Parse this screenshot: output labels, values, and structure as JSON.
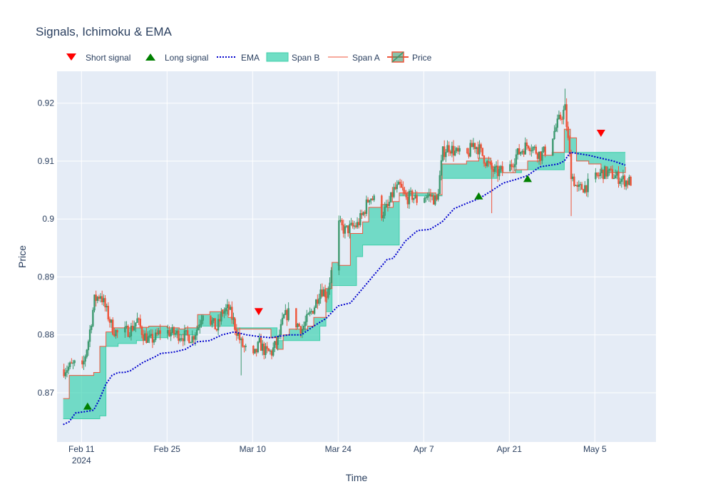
{
  "colors": {
    "plot_bg": "#e5ecf6",
    "grid": "#ffffff",
    "cloud_fill": "#40d3b2",
    "span_a": "#ef553b",
    "span_b": "#3fcfa9",
    "ema": "#0000cd",
    "up": "#3d9970",
    "down": "#ef553b",
    "short_signal": "#ff0000",
    "long_signal": "#008000"
  },
  "chart_data": {
    "type": "candlestick",
    "title": "Signals, Ichimoku & EMA",
    "xlabel": "Time",
    "ylabel": "Price",
    "x_range": [
      "2024-02-07",
      "2024-05-15"
    ],
    "ylim": [
      0.8615,
      0.9255
    ],
    "y_ticks": [
      0.87,
      0.88,
      0.89,
      0.9,
      0.91,
      0.92
    ],
    "y_tick_labels": [
      "0.87",
      "0.88",
      "0.89",
      "0.9",
      "0.91",
      "0.92"
    ],
    "x_ticks": [
      "2024-02-11",
      "2024-02-25",
      "2024-03-10",
      "2024-03-24",
      "2024-04-07",
      "2024-04-21",
      "2024-05-05"
    ],
    "x_tick_labels": [
      "Feb 11",
      "Feb 25",
      "Mar 10",
      "Mar 24",
      "Apr 7",
      "Apr 21",
      "May 5"
    ],
    "x_tick_sublabel": "2024",
    "grid": true,
    "legend": {
      "placement": "top-left horizontal",
      "entries": [
        "Short signal",
        "Long signal",
        "EMA",
        "Span B",
        "Span A",
        "Price"
      ]
    },
    "price_anchors": [
      [
        "2024-02-08",
        0.874
      ],
      [
        "2024-02-09",
        0.8745
      ],
      [
        "2024-02-10",
        0.875
      ],
      [
        "2024-02-11",
        0.874
      ],
      [
        "2024-02-12",
        0.879
      ],
      [
        "2024-02-13",
        0.886
      ],
      [
        "2024-02-14",
        0.887
      ],
      [
        "2024-02-15",
        0.884
      ],
      [
        "2024-02-16",
        0.881
      ],
      [
        "2024-02-17",
        0.88
      ],
      [
        "2024-02-19",
        0.881
      ],
      [
        "2024-02-20",
        0.8825
      ],
      [
        "2024-02-21",
        0.88
      ],
      [
        "2024-02-22",
        0.879
      ],
      [
        "2024-02-23",
        0.8795
      ],
      [
        "2024-02-24",
        0.881
      ],
      [
        "2024-02-25",
        0.8805
      ],
      [
        "2024-02-27",
        0.88
      ],
      [
        "2024-02-29",
        0.8795
      ],
      [
        "2024-03-01",
        0.8815
      ],
      [
        "2024-03-02",
        0.885
      ],
      [
        "2024-03-03",
        0.8825
      ],
      [
        "2024-03-04",
        0.881
      ],
      [
        "2024-03-05",
        0.884
      ],
      [
        "2024-03-06",
        0.8845
      ],
      [
        "2024-03-07",
        0.8815
      ],
      [
        "2024-03-08",
        0.8785
      ],
      [
        "2024-03-09",
        0.877
      ],
      [
        "2024-03-10",
        0.876
      ],
      [
        "2024-03-11",
        0.8785
      ],
      [
        "2024-03-12",
        0.877
      ],
      [
        "2024-03-13",
        0.877
      ],
      [
        "2024-03-14",
        0.879
      ],
      [
        "2024-03-15",
        0.883
      ],
      [
        "2024-03-16",
        0.884
      ],
      [
        "2024-03-17",
        0.882
      ],
      [
        "2024-03-18",
        0.881
      ],
      [
        "2024-03-19",
        0.883
      ],
      [
        "2024-03-20",
        0.885
      ],
      [
        "2024-03-21",
        0.888
      ],
      [
        "2024-03-22",
        0.887
      ],
      [
        "2024-03-23",
        0.892
      ],
      [
        "2024-03-24",
        0.899
      ],
      [
        "2024-03-25",
        0.898
      ],
      [
        "2024-03-27",
        0.899
      ],
      [
        "2024-03-28",
        0.901
      ],
      [
        "2024-03-29",
        0.904
      ],
      [
        "2024-03-30",
        0.903
      ],
      [
        "2024-03-31",
        0.901
      ],
      [
        "2024-04-01",
        0.902
      ],
      [
        "2024-04-02",
        0.905
      ],
      [
        "2024-04-03",
        0.9055
      ],
      [
        "2024-04-04",
        0.9035
      ],
      [
        "2024-04-05",
        0.904
      ],
      [
        "2024-04-06",
        0.903
      ],
      [
        "2024-04-07",
        0.904
      ],
      [
        "2024-04-08",
        0.904
      ],
      [
        "2024-04-09",
        0.903
      ],
      [
        "2024-04-10",
        0.9115
      ],
      [
        "2024-04-11",
        0.9125
      ],
      [
        "2024-04-12",
        0.9115
      ],
      [
        "2024-04-13",
        0.911
      ],
      [
        "2024-04-14",
        0.911
      ],
      [
        "2024-04-15",
        0.913
      ],
      [
        "2024-04-16",
        0.912
      ],
      [
        "2024-04-17",
        0.91
      ],
      [
        "2024-04-18",
        0.9085
      ],
      [
        "2024-04-19",
        0.908
      ],
      [
        "2024-04-20",
        0.9085
      ],
      [
        "2024-04-21",
        0.909
      ],
      [
        "2024-04-22",
        0.911
      ],
      [
        "2024-04-23",
        0.912
      ],
      [
        "2024-04-24",
        0.913
      ],
      [
        "2024-04-25",
        0.912
      ],
      [
        "2024-04-26",
        0.911
      ],
      [
        "2024-04-27",
        0.912
      ],
      [
        "2024-04-29",
        0.917
      ],
      [
        "2024-04-30",
        0.919
      ],
      [
        "2024-05-01",
        0.908
      ],
      [
        "2024-05-02",
        0.905
      ],
      [
        "2024-05-04",
        0.906
      ],
      [
        "2024-05-05",
        0.907
      ],
      [
        "2024-05-06",
        0.908
      ],
      [
        "2024-05-07",
        0.908
      ],
      [
        "2024-05-08",
        0.9075
      ],
      [
        "2024-05-09",
        0.907
      ],
      [
        "2024-05-10",
        0.9065
      ]
    ],
    "span_a": [
      [
        "2024-02-08",
        0.869
      ],
      [
        "2024-02-09",
        0.873
      ],
      [
        "2024-02-13",
        0.8735
      ],
      [
        "2024-02-14",
        0.878
      ],
      [
        "2024-02-15",
        0.8805
      ],
      [
        "2024-02-16",
        0.8812
      ],
      [
        "2024-02-21",
        0.8813
      ],
      [
        "2024-02-22",
        0.8815
      ],
      [
        "2024-02-25",
        0.8812
      ],
      [
        "2024-02-27",
        0.881
      ],
      [
        "2024-02-28",
        0.8812
      ],
      [
        "2024-03-01",
        0.8835
      ],
      [
        "2024-03-03",
        0.884
      ],
      [
        "2024-03-05",
        0.8843
      ],
      [
        "2024-03-06",
        0.883
      ],
      [
        "2024-03-07",
        0.881
      ],
      [
        "2024-03-13",
        0.8795
      ],
      [
        "2024-03-14",
        0.8775
      ],
      [
        "2024-03-15",
        0.88
      ],
      [
        "2024-03-16",
        0.881
      ],
      [
        "2024-03-19",
        0.8815
      ],
      [
        "2024-03-20",
        0.883
      ],
      [
        "2024-03-22",
        0.888
      ],
      [
        "2024-03-23",
        0.8925
      ],
      [
        "2024-03-24",
        0.892
      ],
      [
        "2024-03-26",
        0.8975
      ],
      [
        "2024-03-28",
        0.8995
      ],
      [
        "2024-03-29",
        0.902
      ],
      [
        "2024-03-31",
        0.9025
      ],
      [
        "2024-04-01",
        0.902
      ],
      [
        "2024-04-02",
        0.903
      ],
      [
        "2024-04-03",
        0.9045
      ],
      [
        "2024-04-07",
        0.9045
      ],
      [
        "2024-04-09",
        0.9042
      ],
      [
        "2024-04-10",
        0.9095
      ],
      [
        "2024-04-14",
        0.91
      ],
      [
        "2024-04-16",
        0.9105
      ],
      [
        "2024-04-18",
        0.909
      ],
      [
        "2024-04-20",
        0.908
      ],
      [
        "2024-04-22",
        0.9085
      ],
      [
        "2024-04-24",
        0.91
      ],
      [
        "2024-04-26",
        0.911
      ],
      [
        "2024-04-28",
        0.9115
      ],
      [
        "2024-04-30",
        0.9155
      ],
      [
        "2024-05-01",
        0.914
      ],
      [
        "2024-05-02",
        0.91
      ],
      [
        "2024-05-04",
        0.9095
      ],
      [
        "2024-05-06",
        0.908
      ],
      [
        "2024-05-10",
        0.909
      ]
    ],
    "span_b": [
      [
        "2024-02-08",
        0.8655
      ],
      [
        "2024-02-13",
        0.8655
      ],
      [
        "2024-02-14",
        0.866
      ],
      [
        "2024-02-15",
        0.878
      ],
      [
        "2024-02-17",
        0.8785
      ],
      [
        "2024-02-20",
        0.879
      ],
      [
        "2024-02-22",
        0.8795
      ],
      [
        "2024-02-25",
        0.88
      ],
      [
        "2024-02-28",
        0.88
      ],
      [
        "2024-03-01",
        0.8815
      ],
      [
        "2024-03-06",
        0.8815
      ],
      [
        "2024-03-07",
        0.8812
      ],
      [
        "2024-03-13",
        0.8812
      ],
      [
        "2024-03-14",
        0.879
      ],
      [
        "2024-03-20",
        0.879
      ],
      [
        "2024-03-21",
        0.8815
      ],
      [
        "2024-03-22",
        0.884
      ],
      [
        "2024-03-23",
        0.8885
      ],
      [
        "2024-03-26",
        0.8885
      ],
      [
        "2024-03-27",
        0.8935
      ],
      [
        "2024-03-28",
        0.8955
      ],
      [
        "2024-04-02",
        0.8955
      ],
      [
        "2024-04-03",
        0.904
      ],
      [
        "2024-04-09",
        0.904
      ],
      [
        "2024-04-10",
        0.907
      ],
      [
        "2024-04-18",
        0.907
      ],
      [
        "2024-04-19",
        0.908
      ],
      [
        "2024-04-22",
        0.908
      ],
      [
        "2024-04-23",
        0.9085
      ],
      [
        "2024-04-29",
        0.9085
      ],
      [
        "2024-04-30",
        0.9115
      ],
      [
        "2024-05-10",
        0.9115
      ]
    ],
    "ema": [
      [
        "2024-02-08",
        0.8645
      ],
      [
        "2024-02-09",
        0.865
      ],
      [
        "2024-02-10",
        0.8665
      ],
      [
        "2024-02-12",
        0.8668
      ],
      [
        "2024-02-13",
        0.867
      ],
      [
        "2024-02-14",
        0.869
      ],
      [
        "2024-02-15",
        0.8715
      ],
      [
        "2024-02-16",
        0.873
      ],
      [
        "2024-02-17",
        0.8735
      ],
      [
        "2024-02-18",
        0.8735
      ],
      [
        "2024-02-19",
        0.8738
      ],
      [
        "2024-02-20",
        0.8745
      ],
      [
        "2024-02-21",
        0.8752
      ],
      [
        "2024-02-22",
        0.8757
      ],
      [
        "2024-02-23",
        0.8762
      ],
      [
        "2024-02-24",
        0.8768
      ],
      [
        "2024-02-26",
        0.877
      ],
      [
        "2024-02-28",
        0.8775
      ],
      [
        "2024-03-01",
        0.8788
      ],
      [
        "2024-03-03",
        0.879
      ],
      [
        "2024-03-05",
        0.88
      ],
      [
        "2024-03-07",
        0.8805
      ],
      [
        "2024-03-09",
        0.88
      ],
      [
        "2024-03-11",
        0.8797
      ],
      [
        "2024-03-13",
        0.8795
      ],
      [
        "2024-03-14",
        0.8797
      ],
      [
        "2024-03-16",
        0.88
      ],
      [
        "2024-03-18",
        0.88
      ],
      [
        "2024-03-20",
        0.8815
      ],
      [
        "2024-03-22",
        0.8828
      ],
      [
        "2024-03-24",
        0.885
      ],
      [
        "2024-03-26",
        0.8855
      ],
      [
        "2024-03-28",
        0.888
      ],
      [
        "2024-03-30",
        0.8905
      ],
      [
        "2024-04-01",
        0.893
      ],
      [
        "2024-04-02",
        0.8932
      ],
      [
        "2024-04-04",
        0.8962
      ],
      [
        "2024-04-06",
        0.898
      ],
      [
        "2024-04-08",
        0.8982
      ],
      [
        "2024-04-10",
        0.8995
      ],
      [
        "2024-04-12",
        0.9018
      ],
      [
        "2024-04-14",
        0.9027
      ],
      [
        "2024-04-16",
        0.9035
      ],
      [
        "2024-04-18",
        0.9048
      ],
      [
        "2024-04-20",
        0.9062
      ],
      [
        "2024-04-22",
        0.9068
      ],
      [
        "2024-04-24",
        0.9075
      ],
      [
        "2024-04-26",
        0.909
      ],
      [
        "2024-04-29",
        0.9095
      ],
      [
        "2024-04-30",
        0.91
      ],
      [
        "2024-05-01",
        0.9115
      ],
      [
        "2024-05-04",
        0.911
      ],
      [
        "2024-05-06",
        0.9105
      ],
      [
        "2024-05-08",
        0.91
      ],
      [
        "2024-05-10",
        0.9093
      ]
    ],
    "long_signals": [
      {
        "date": "2024-02-12",
        "value": 0.8677
      },
      {
        "date": "2024-04-16",
        "value": 0.904
      },
      {
        "date": "2024-04-24",
        "value": 0.907
      }
    ],
    "short_signals": [
      {
        "date": "2024-03-11",
        "value": 0.884
      },
      {
        "date": "2024-05-06",
        "value": 0.9148
      }
    ],
    "notable_wicks": [
      {
        "date": "2024-04-18",
        "low": 0.901
      },
      {
        "date": "2024-05-01",
        "low": 0.9005
      },
      {
        "date": "2024-03-08",
        "low": 0.873
      },
      {
        "date": "2024-04-30",
        "high": 0.9225
      }
    ]
  }
}
